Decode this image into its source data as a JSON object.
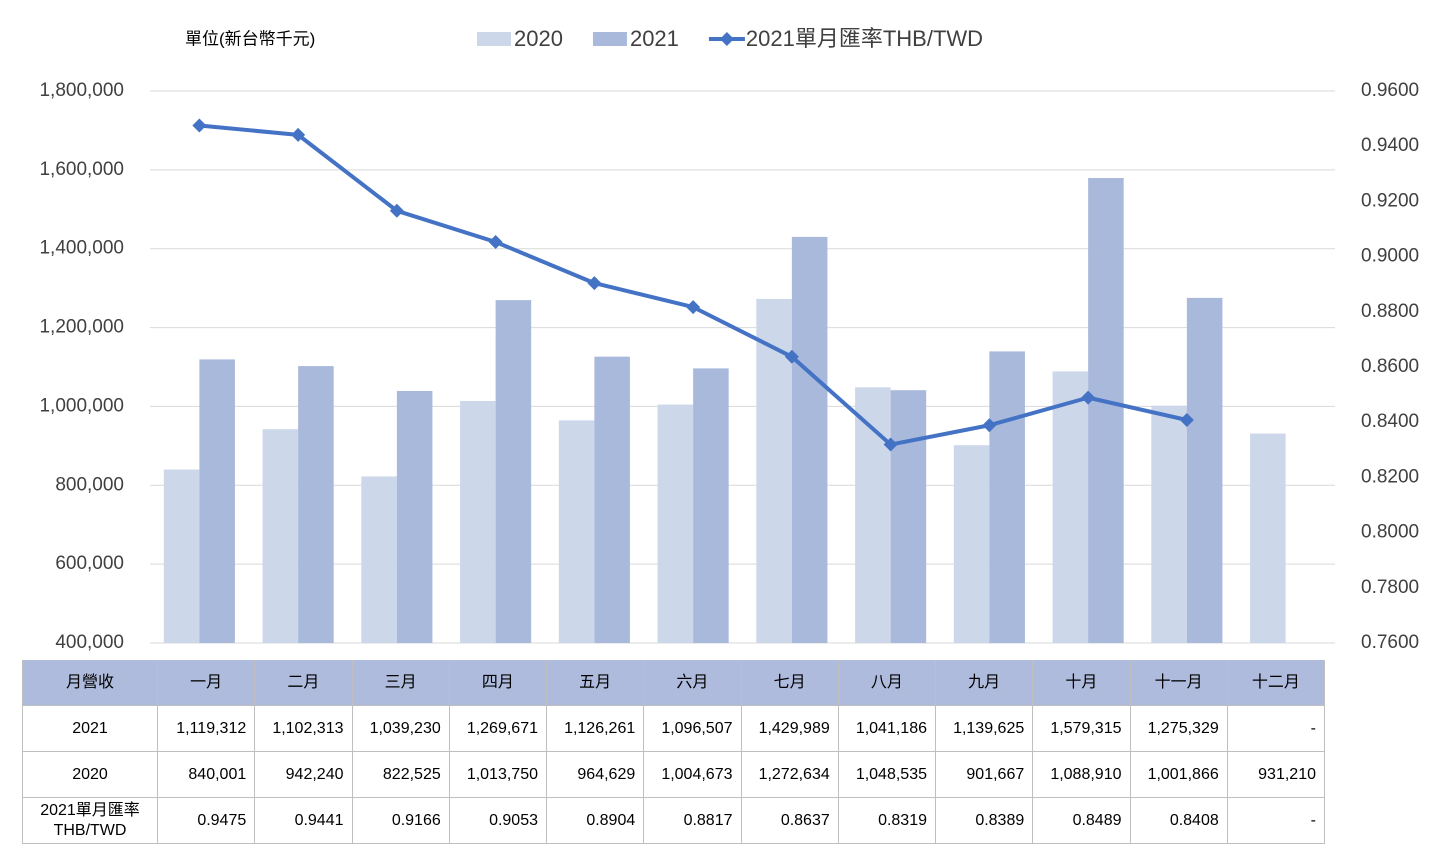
{
  "chart_data": {
    "type": "bar-line",
    "unit_label": "單位(新台幣千元)",
    "table_header": "月營收",
    "categories": [
      "一月",
      "二月",
      "三月",
      "四月",
      "五月",
      "六月",
      "七月",
      "八月",
      "九月",
      "十月",
      "十一月",
      "十二月"
    ],
    "series": [
      {
        "name": "2020",
        "color": "#cdd7ea",
        "values": [
          840001,
          942240,
          822525,
          1013750,
          964629,
          1004673,
          1272634,
          1048535,
          901667,
          1088910,
          1001866,
          931210
        ],
        "value_labels": [
          "840,001",
          "942,240",
          "822,525",
          "1,013,750",
          "964,629",
          "1,004,673",
          "1,272,634",
          "1,048,535",
          "901,667",
          "1,088,910",
          "1,001,866",
          "931,210"
        ]
      },
      {
        "name": "2021",
        "color": "#a9b9dc",
        "values": [
          1119312,
          1102313,
          1039230,
          1269671,
          1126261,
          1096507,
          1429989,
          1041186,
          1139625,
          1579315,
          1275329,
          null
        ],
        "value_labels": [
          "1,119,312",
          "1,102,313",
          "1,039,230",
          "1,269,671",
          "1,126,261",
          "1,096,507",
          "1,429,989",
          "1,041,186",
          "1,139,625",
          "1,579,315",
          "1,275,329",
          "-"
        ]
      },
      {
        "name": "2021單月匯率THB/TWD",
        "color": "#4472c4",
        "axis": "y2",
        "type": "line",
        "values": [
          0.9475,
          0.9441,
          0.9166,
          0.9053,
          0.8904,
          0.8817,
          0.8637,
          0.8319,
          0.8389,
          0.8489,
          0.8408,
          null
        ],
        "value_labels": [
          "0.9475",
          "0.9441",
          "0.9166",
          "0.9053",
          "0.8904",
          "0.8817",
          "0.8637",
          "0.8319",
          "0.8389",
          "0.8489",
          "0.8408",
          "-"
        ]
      }
    ],
    "ylim": [
      400000,
      1800000
    ],
    "yticks": [
      {
        "value": 400000,
        "label": "400,000"
      },
      {
        "value": 600000,
        "label": "600,000"
      },
      {
        "value": 800000,
        "label": "800,000"
      },
      {
        "value": 1000000,
        "label": "1,000,000"
      },
      {
        "value": 1200000,
        "label": "1,200,000"
      },
      {
        "value": 1400000,
        "label": "1,400,000"
      },
      {
        "value": 1600000,
        "label": "1,600,000"
      },
      {
        "value": 1800000,
        "label": "1,800,000"
      }
    ],
    "y2lim": [
      0.76,
      0.96
    ],
    "y2ticks": [
      {
        "value": 0.76,
        "label": "0.7600"
      },
      {
        "value": 0.78,
        "label": "0.7800"
      },
      {
        "value": 0.8,
        "label": "0.8000"
      },
      {
        "value": 0.82,
        "label": "0.8200"
      },
      {
        "value": 0.84,
        "label": "0.8400"
      },
      {
        "value": 0.86,
        "label": "0.8600"
      },
      {
        "value": 0.88,
        "label": "0.8800"
      },
      {
        "value": 0.9,
        "label": "0.9000"
      },
      {
        "value": 0.92,
        "label": "0.9200"
      },
      {
        "value": 0.94,
        "label": "0.9400"
      },
      {
        "value": 0.96,
        "label": "0.9600"
      }
    ],
    "grid": true
  }
}
